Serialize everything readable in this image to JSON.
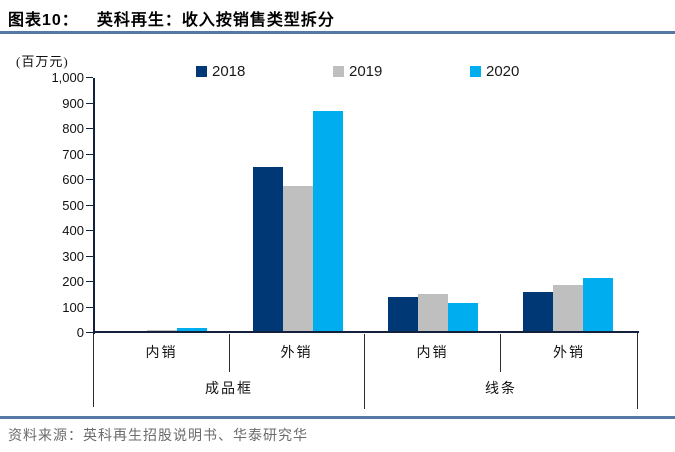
{
  "page": {
    "title_prefix": "图表10：",
    "title": "英科再生：收入按销售类型拆分",
    "source_note": "资料来源：英科再生招股说明书、华泰研究华"
  },
  "colors": {
    "accent_rule": "#5578A5",
    "axis": "#14213D",
    "table_line": "#2b2b2b",
    "source_text": "#6b6b6b"
  },
  "chart_data": {
    "type": "bar",
    "title": "英科再生：收入按销售类型拆分",
    "unit_label": "(百万元)",
    "ylim": [
      0,
      1000
    ],
    "ytick_step": 100,
    "grid": false,
    "legend_position": "top",
    "series": [
      {
        "name": "2018",
        "color": "#003876",
        "values": [
          5,
          650,
          140,
          160
        ]
      },
      {
        "name": "2019",
        "color": "#BFBFBF",
        "values": [
          10,
          575,
          153,
          190
        ]
      },
      {
        "name": "2020",
        "color": "#00AEEF",
        "values": [
          18,
          870,
          118,
          215
        ]
      }
    ],
    "categories": [
      {
        "sub": "内销",
        "group": "成品框"
      },
      {
        "sub": "外销",
        "group": "成品框"
      },
      {
        "sub": "内销",
        "group": "线条"
      },
      {
        "sub": "外销",
        "group": "线条"
      }
    ],
    "group_labels": [
      "成品框",
      "线条"
    ]
  }
}
